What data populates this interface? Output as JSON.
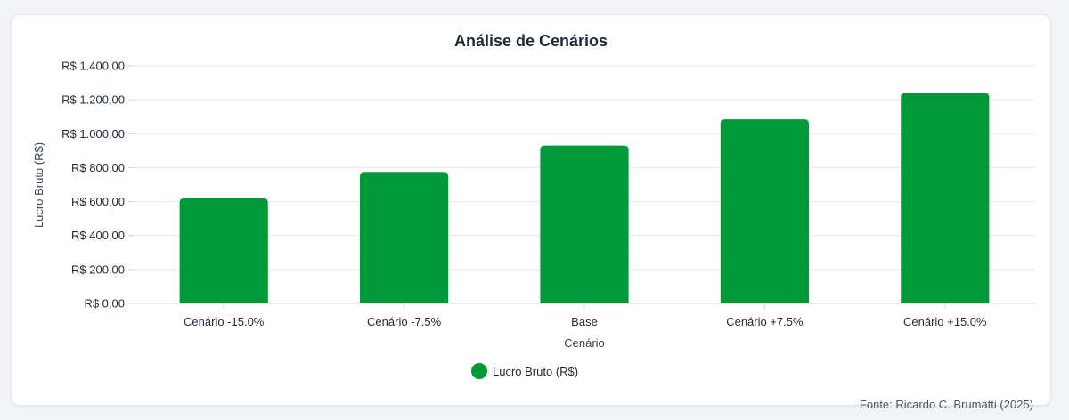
{
  "chart_data": {
    "type": "bar",
    "title": "Análise de Cenários",
    "xlabel": "Cenário",
    "ylabel": "Lucro Bruto (R$)",
    "categories": [
      "Cenário -15.0%",
      "Cenário -7.5%",
      "Base",
      "Cenário +7.5%",
      "Cenário +15.0%"
    ],
    "series": [
      {
        "name": "Lucro Bruto (R$)",
        "color": "#00993a",
        "values": [
          620,
          775,
          930,
          1085,
          1240
        ]
      }
    ],
    "ylim": [
      0,
      1400
    ],
    "yticks": [
      0,
      200,
      400,
      600,
      800,
      1000,
      1200,
      1400
    ],
    "ytick_labels": [
      "R$ 0,00",
      "R$ 200,00",
      "R$ 400,00",
      "R$ 600,00",
      "R$ 800,00",
      "R$ 1.000,00",
      "R$ 1.200,00",
      "R$ 1.400,00"
    ],
    "grid": true,
    "legend_position": "bottom-center",
    "source": "Fonte: Ricardo C. Brumatti (2025)"
  }
}
